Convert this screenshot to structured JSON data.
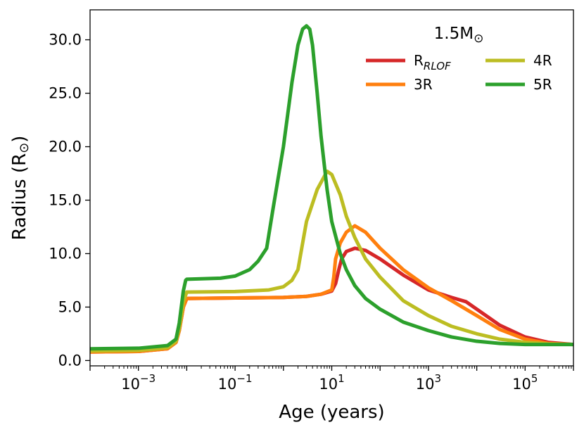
{
  "chart_data": {
    "type": "line",
    "xlabel": "Age (years)",
    "ylabel": "Radius (R",
    "ylabel_symbol": "⊙",
    "ylabel_close": ")",
    "x_scale": "log",
    "xlim": [
      0.0001,
      1000000
    ],
    "ylim": [
      -0.5,
      32.8
    ],
    "x_ticks": [
      {
        "value": 0.001,
        "base": "10",
        "exp": "−3"
      },
      {
        "value": 0.1,
        "base": "10",
        "exp": "−1"
      },
      {
        "value": 10,
        "base": "10",
        "exp": "1"
      },
      {
        "value": 1000,
        "base": "10",
        "exp": "3"
      },
      {
        "value": 100000,
        "base": "10",
        "exp": "5"
      }
    ],
    "y_ticks": [
      {
        "value": 0,
        "label": "0.0"
      },
      {
        "value": 5,
        "label": "5.0"
      },
      {
        "value": 10,
        "label": "10.0"
      },
      {
        "value": 15,
        "label": "15.0"
      },
      {
        "value": 20,
        "label": "20.0"
      },
      {
        "value": 25,
        "label": "25.0"
      },
      {
        "value": 30,
        "label": "30.0"
      }
    ],
    "grid": false,
    "legend": {
      "placement": "top-right",
      "title": "1.5M",
      "title_symbol": "⊙"
    },
    "series": [
      {
        "name": "R",
        "name_sub": "RLOF",
        "color": "#d62728",
        "points": [
          [
            0.0001,
            0.8
          ],
          [
            0.001,
            0.85
          ],
          [
            0.004,
            1.1
          ],
          [
            0.006,
            1.7
          ],
          [
            0.007,
            2.8
          ],
          [
            0.0085,
            5.0
          ],
          [
            0.01,
            5.8
          ],
          [
            0.1,
            5.85
          ],
          [
            1,
            5.9
          ],
          [
            3,
            6.0
          ],
          [
            6,
            6.2
          ],
          [
            10,
            6.5
          ],
          [
            12,
            7.2
          ],
          [
            14,
            8.5
          ],
          [
            16,
            9.5
          ],
          [
            20,
            10.2
          ],
          [
            30,
            10.5
          ],
          [
            50,
            10.3
          ],
          [
            100,
            9.5
          ],
          [
            300,
            8.0
          ],
          [
            1000,
            6.6
          ],
          [
            3000,
            5.9
          ],
          [
            6000,
            5.5
          ],
          [
            10000,
            4.8
          ],
          [
            30000,
            3.3
          ],
          [
            100000,
            2.2
          ],
          [
            300000,
            1.7
          ],
          [
            1000000,
            1.5
          ]
        ]
      },
      {
        "name": "3R",
        "color": "#ff7f0e",
        "points": [
          [
            0.0001,
            0.8
          ],
          [
            0.001,
            0.85
          ],
          [
            0.004,
            1.1
          ],
          [
            0.006,
            1.7
          ],
          [
            0.007,
            2.8
          ],
          [
            0.0085,
            5.0
          ],
          [
            0.01,
            5.8
          ],
          [
            0.1,
            5.85
          ],
          [
            1,
            5.9
          ],
          [
            3,
            6.0
          ],
          [
            6,
            6.2
          ],
          [
            10,
            6.6
          ],
          [
            11,
            7.8
          ],
          [
            12,
            9.5
          ],
          [
            15,
            11.0
          ],
          [
            20,
            12.0
          ],
          [
            30,
            12.6
          ],
          [
            50,
            12.0
          ],
          [
            100,
            10.5
          ],
          [
            300,
            8.5
          ],
          [
            1000,
            6.8
          ],
          [
            3000,
            5.6
          ],
          [
            10000,
            4.2
          ],
          [
            30000,
            2.9
          ],
          [
            100000,
            2.0
          ],
          [
            300000,
            1.6
          ],
          [
            1000000,
            1.5
          ]
        ]
      },
      {
        "name": "4R",
        "color": "#bcbd22",
        "points": [
          [
            0.0001,
            0.9
          ],
          [
            0.001,
            0.95
          ],
          [
            0.004,
            1.2
          ],
          [
            0.006,
            1.8
          ],
          [
            0.007,
            3.0
          ],
          [
            0.0085,
            5.5
          ],
          [
            0.01,
            6.4
          ],
          [
            0.1,
            6.45
          ],
          [
            0.5,
            6.6
          ],
          [
            1,
            6.9
          ],
          [
            1.5,
            7.5
          ],
          [
            2,
            8.5
          ],
          [
            2.5,
            11.0
          ],
          [
            3,
            13.0
          ],
          [
            5,
            16.0
          ],
          [
            8,
            17.7
          ],
          [
            10,
            17.4
          ],
          [
            15,
            15.5
          ],
          [
            20,
            13.5
          ],
          [
            30,
            11.5
          ],
          [
            50,
            9.5
          ],
          [
            100,
            7.8
          ],
          [
            300,
            5.6
          ],
          [
            1000,
            4.2
          ],
          [
            3000,
            3.2
          ],
          [
            10000,
            2.5
          ],
          [
            30000,
            2.0
          ],
          [
            100000,
            1.7
          ],
          [
            300000,
            1.55
          ],
          [
            1000000,
            1.5
          ]
        ]
      },
      {
        "name": "5R",
        "color": "#2ca02c",
        "points": [
          [
            0.0001,
            1.1
          ],
          [
            0.001,
            1.15
          ],
          [
            0.004,
            1.4
          ],
          [
            0.006,
            2.0
          ],
          [
            0.007,
            3.5
          ],
          [
            0.0085,
            6.5
          ],
          [
            0.0095,
            7.5
          ],
          [
            0.01,
            7.6
          ],
          [
            0.05,
            7.7
          ],
          [
            0.1,
            7.9
          ],
          [
            0.2,
            8.5
          ],
          [
            0.3,
            9.3
          ],
          [
            0.45,
            10.5
          ],
          [
            0.6,
            14.0
          ],
          [
            1,
            20.0
          ],
          [
            1.5,
            26.0
          ],
          [
            2,
            29.5
          ],
          [
            2.5,
            31.0
          ],
          [
            3,
            31.3
          ],
          [
            3.5,
            31.0
          ],
          [
            4,
            29.5
          ],
          [
            5,
            25.0
          ],
          [
            6,
            21.0
          ],
          [
            8,
            16.0
          ],
          [
            10,
            13.0
          ],
          [
            15,
            10.0
          ],
          [
            20,
            8.5
          ],
          [
            30,
            7.0
          ],
          [
            50,
            5.8
          ],
          [
            100,
            4.8
          ],
          [
            300,
            3.6
          ],
          [
            1000,
            2.8
          ],
          [
            3000,
            2.2
          ],
          [
            10000,
            1.8
          ],
          [
            30000,
            1.6
          ],
          [
            100000,
            1.5
          ],
          [
            1000000,
            1.5
          ]
        ]
      }
    ]
  }
}
